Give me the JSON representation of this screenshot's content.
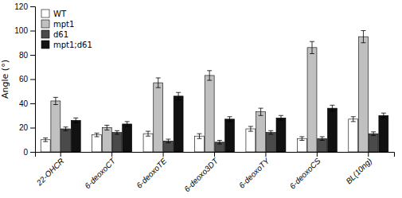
{
  "chart_data": {
    "type": "bar",
    "ylabel": "Angle (°)",
    "categories": [
      "22-OHCR",
      "6-deoxoCT",
      "6-deoxoTE",
      "6-deoxo3DT",
      "6-deoxoTY",
      "6-deoxoCS",
      "BL(10ng)"
    ],
    "series": [
      {
        "name": "WT",
        "color": "#ffffff",
        "values": [
          10,
          14,
          15,
          13,
          19,
          11,
          27
        ],
        "errors": [
          1.5,
          1.5,
          2,
          2,
          2,
          1.5,
          2
        ]
      },
      {
        "name": "mpt1",
        "color": "#c0c0c0",
        "values": [
          42,
          20,
          57,
          63,
          33,
          86,
          95
        ],
        "errors": [
          3,
          2,
          4,
          4,
          3,
          5,
          5
        ]
      },
      {
        "name": "d61",
        "color": "#4a4a4a",
        "values": [
          19,
          16,
          9,
          8,
          16,
          11,
          15
        ],
        "errors": [
          1.5,
          1.5,
          1.5,
          1.5,
          1.5,
          1.5,
          1.5
        ]
      },
      {
        "name": "mpt1;d61",
        "color": "#111111",
        "values": [
          26,
          23,
          46,
          27,
          28,
          36,
          30
        ],
        "errors": [
          2,
          2,
          3,
          2,
          2,
          2.5,
          2
        ]
      }
    ],
    "ylim": [
      0,
      120
    ],
    "yticks": [
      0,
      20,
      40,
      60,
      80,
      100,
      120
    ],
    "grid": false,
    "legend": "upper-left"
  }
}
